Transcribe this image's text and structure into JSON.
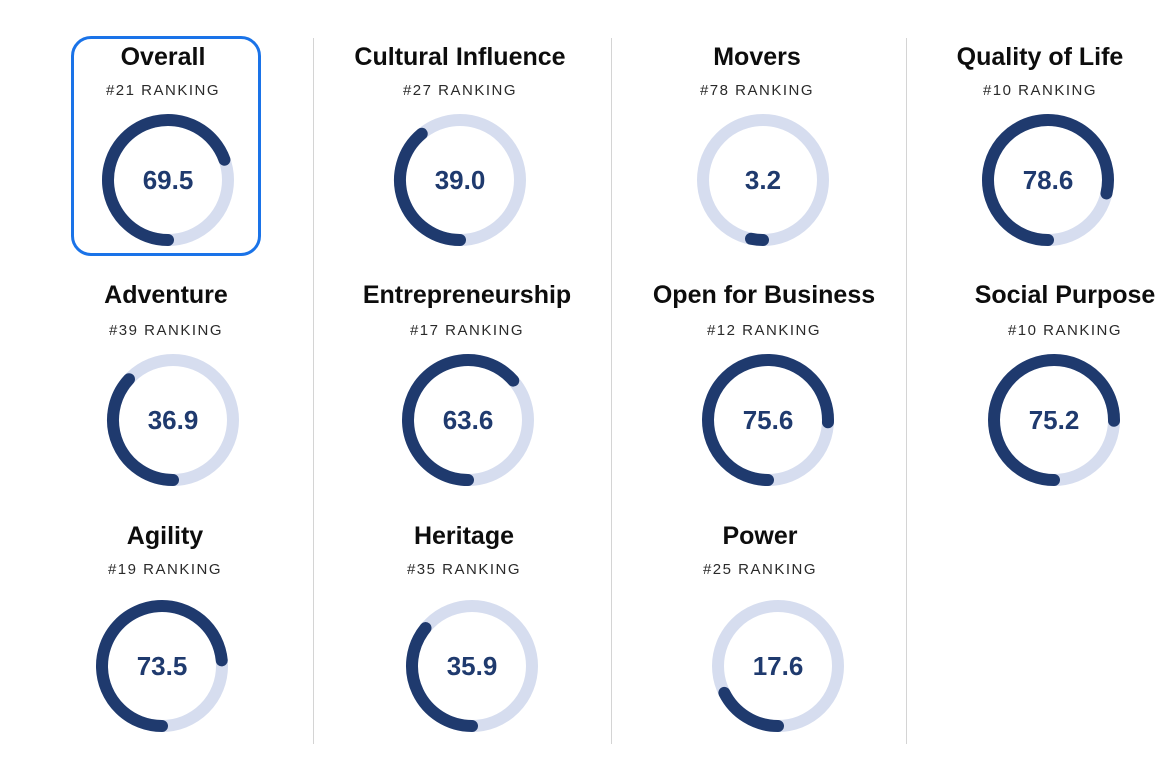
{
  "colors": {
    "accent": "#1a73e8",
    "gauge_fill": "#1f3a6e",
    "gauge_track": "#d6ddef",
    "value_text": "#1f3a6e"
  },
  "selected_metric": "overall",
  "metrics": [
    {
      "id": "overall",
      "title": "Overall",
      "ranking": "#21 RANKING",
      "value": "69.5",
      "score": 69.5
    },
    {
      "id": "cultural_influence",
      "title": "Cultural Influence",
      "ranking": "#27 RANKING",
      "value": "39.0",
      "score": 39.0
    },
    {
      "id": "movers",
      "title": "Movers",
      "ranking": "#78 RANKING",
      "value": "3.2",
      "score": 3.2
    },
    {
      "id": "quality_of_life",
      "title": "Quality of Life",
      "ranking": "#10 RANKING",
      "value": "78.6",
      "score": 78.6
    },
    {
      "id": "adventure",
      "title": "Adventure",
      "ranking": "#39 RANKING",
      "value": "36.9",
      "score": 36.9
    },
    {
      "id": "entrepreneurship",
      "title": "Entrepreneurship",
      "ranking": "#17 RANKING",
      "value": "63.6",
      "score": 63.6
    },
    {
      "id": "open_for_business",
      "title": "Open for Business",
      "ranking": "#12 RANKING",
      "value": "75.6",
      "score": 75.6
    },
    {
      "id": "social_purpose",
      "title": "Social Purpose",
      "ranking": "#10 RANKING",
      "value": "75.2",
      "score": 75.2
    },
    {
      "id": "agility",
      "title": "Agility",
      "ranking": "#19 RANKING",
      "value": "73.5",
      "score": 73.5
    },
    {
      "id": "heritage",
      "title": "Heritage",
      "ranking": "#35 RANKING",
      "value": "35.9",
      "score": 35.9
    },
    {
      "id": "power",
      "title": "Power",
      "ranking": "#25 RANKING",
      "value": "17.6",
      "score": 17.6
    }
  ]
}
